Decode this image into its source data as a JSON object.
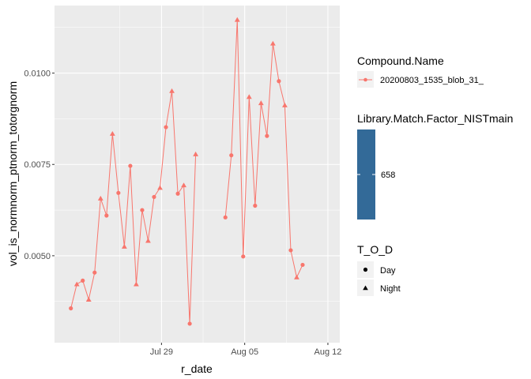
{
  "chart_data": {
    "type": "line",
    "xlabel": "r_date",
    "ylabel": "vol_is_normnorm_ptnorm_totorgnorm",
    "x_ticks": [
      "Jul 29",
      "Aug 05",
      "Aug 12"
    ],
    "x_tick_dates": [
      "2020-07-29",
      "2020-08-05",
      "2020-08-12"
    ],
    "y_ticks": [
      0.005,
      0.0075,
      0.01
    ],
    "y_tick_labels": [
      "0.0050",
      "0.0075",
      "0.0100"
    ],
    "xlim": [
      "2020-07-20",
      "2020-08-13"
    ],
    "ylim": [
      0.00262,
      0.01185
    ],
    "grid": true,
    "background": "#ebebeb",
    "series_color": "#f8766d",
    "series": [
      {
        "name": "20200803_1535_blob_31_",
        "points": [
          {
            "x": "2020-07-21 09:00",
            "y": 0.00356,
            "tod": "Day"
          },
          {
            "x": "2020-07-21 21:00",
            "y": 0.00422,
            "tod": "Night"
          },
          {
            "x": "2020-07-22 09:00",
            "y": 0.00432,
            "tod": "Day"
          },
          {
            "x": "2020-07-22 21:00",
            "y": 0.0038,
            "tod": "Night"
          },
          {
            "x": "2020-07-23 09:00",
            "y": 0.00454,
            "tod": "Day"
          },
          {
            "x": "2020-07-23 21:00",
            "y": 0.00657,
            "tod": "Night"
          },
          {
            "x": "2020-07-24 09:00",
            "y": 0.0061,
            "tod": "Day"
          },
          {
            "x": "2020-07-24 21:00",
            "y": 0.00834,
            "tod": "Night"
          },
          {
            "x": "2020-07-25 09:00",
            "y": 0.00672,
            "tod": "Day"
          },
          {
            "x": "2020-07-25 21:00",
            "y": 0.00525,
            "tod": "Night"
          },
          {
            "x": "2020-07-26 09:00",
            "y": 0.00746,
            "tod": "Day"
          },
          {
            "x": "2020-07-26 21:00",
            "y": 0.00422,
            "tod": "Night"
          },
          {
            "x": "2020-07-27 09:00",
            "y": 0.00625,
            "tod": "Day"
          },
          {
            "x": "2020-07-27 21:00",
            "y": 0.00541,
            "tod": "Night"
          },
          {
            "x": "2020-07-28 09:00",
            "y": 0.00661,
            "tod": "Day"
          },
          {
            "x": "2020-07-28 21:00",
            "y": 0.00686,
            "tod": "Night"
          },
          {
            "x": "2020-07-29 09:00",
            "y": 0.00852,
            "tod": "Day"
          },
          {
            "x": "2020-07-29 21:00",
            "y": 0.00951,
            "tod": "Night"
          },
          {
            "x": "2020-07-30 09:00",
            "y": 0.0067,
            "tod": "Day"
          },
          {
            "x": "2020-07-30 21:00",
            "y": 0.00693,
            "tod": "Night"
          },
          {
            "x": "2020-07-31 09:00",
            "y": 0.00314,
            "tod": "Day"
          },
          {
            "x": "2020-07-31 21:00",
            "y": 0.00778,
            "tod": "Night"
          }
        ]
      },
      {
        "name": "20200803_1535_blob_31_",
        "points": [
          {
            "x": "2020-08-03 09:00",
            "y": 0.00605,
            "tod": "Day"
          },
          {
            "x": "2020-08-03 21:00",
            "y": 0.00775,
            "tod": "Day"
          },
          {
            "x": "2020-08-04 09:00",
            "y": 0.01146,
            "tod": "Night"
          },
          {
            "x": "2020-08-04 21:00",
            "y": 0.00498,
            "tod": "Day"
          },
          {
            "x": "2020-08-05 09:00",
            "y": 0.00935,
            "tod": "Night"
          },
          {
            "x": "2020-08-05 21:00",
            "y": 0.00637,
            "tod": "Day"
          },
          {
            "x": "2020-08-06 09:00",
            "y": 0.00918,
            "tod": "Night"
          },
          {
            "x": "2020-08-06 21:00",
            "y": 0.00828,
            "tod": "Day"
          },
          {
            "x": "2020-08-07 09:00",
            "y": 0.01081,
            "tod": "Night"
          },
          {
            "x": "2020-08-07 21:00",
            "y": 0.00978,
            "tod": "Day"
          },
          {
            "x": "2020-08-08 09:00",
            "y": 0.00912,
            "tod": "Night"
          },
          {
            "x": "2020-08-08 21:00",
            "y": 0.00515,
            "tod": "Day"
          },
          {
            "x": "2020-08-09 09:00",
            "y": 0.00441,
            "tod": "Night"
          },
          {
            "x": "2020-08-09 21:00",
            "y": 0.00475,
            "tod": "Day"
          }
        ]
      }
    ]
  },
  "legend": {
    "compound_title": "Compound.Name",
    "compound_label": "20200803_1535_blob_31_",
    "compound_color": "#f8766d",
    "library_title": "Library.Match.Factor_NISTmain",
    "library_value": "658",
    "library_color": "#336a98",
    "tod_title": "T_O_D",
    "tod_items": [
      {
        "label": "Day",
        "shape": "circle"
      },
      {
        "label": "Night",
        "shape": "triangle"
      }
    ]
  }
}
